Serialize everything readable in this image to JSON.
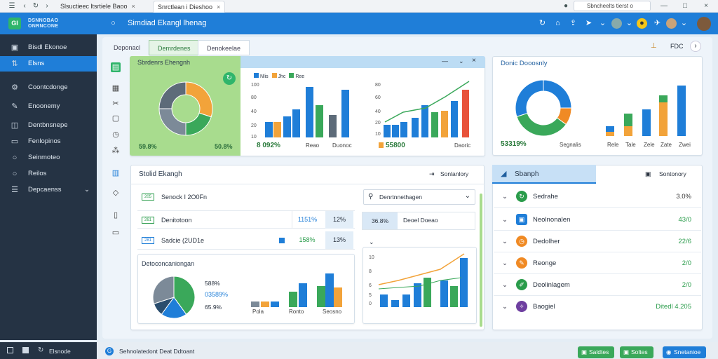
{
  "browser": {
    "tabs": [
      {
        "label": "Slsuctieec ltsrtiele Baoo",
        "active": false
      },
      {
        "label": "Snrctlean i Dieshoo",
        "active": true
      }
    ],
    "address": "Sbncheelts tierst o"
  },
  "app": {
    "brand": "DSNNOBAO ONRNCONE",
    "title": "Simdiad Ekangl lhenag"
  },
  "sidebar": {
    "items": [
      {
        "label": "Bisdl Ekonoe",
        "icon": "grid-icon",
        "active": false
      },
      {
        "label": "Elsns",
        "icon": "chart-icon",
        "active": true
      },
      {
        "label": "Coontcdonge",
        "icon": "settings-icon",
        "active": false
      },
      {
        "label": "Enoonemy",
        "icon": "edit-icon",
        "active": false
      },
      {
        "label": "Dentbnsnepe",
        "icon": "layers-icon",
        "active": false
      },
      {
        "label": "Fenlopinos",
        "icon": "folder-icon",
        "active": false
      },
      {
        "label": "Seinmoteo",
        "icon": "circle-icon",
        "active": false
      },
      {
        "label": "Reilos",
        "icon": "circle-icon",
        "active": false
      },
      {
        "label": "Depcaenss",
        "icon": "list-icon",
        "active": false
      }
    ]
  },
  "subtabs": [
    "Deponacl",
    "Demrdenes",
    "Denokeelae"
  ],
  "toolbar": {
    "zoom": "FDC"
  },
  "card1": {
    "title": "Sbrdenrs Ehengnh",
    "stat_left": "59.8%",
    "stat_right": "50.8%"
  },
  "card2": {
    "legend": [
      "Nlis",
      "Jhc",
      "Ree"
    ],
    "y_ticks": [
      "100",
      "80",
      "40",
      "20",
      "10"
    ],
    "stat": "8 092%",
    "foot1": "Reao",
    "foot2": "Duonoc"
  },
  "card3": {
    "y_ticks": [
      "80",
      "60",
      "40",
      "20",
      "10"
    ],
    "stat": "55800",
    "foot": "Daoric"
  },
  "card4": {
    "title": "Donic Dooosnly",
    "stat": "53319%",
    "labels": [
      "Segnalis",
      "Rele",
      "Tale",
      "Zele",
      "Zate",
      "Zwei"
    ]
  },
  "panel": {
    "title": "Stolid Ekangh",
    "action": "Sonlanlory",
    "search_placeholder": "Denrtnnethagen",
    "rows": [
      {
        "tag": "205",
        "label": "Senock I 2O0Fn",
        "v1": "",
        "v2": ""
      },
      {
        "tag": "261",
        "label": "Denitotoon",
        "v1": "1151%",
        "v2": "12%"
      },
      {
        "tag": "281",
        "label": "Sadcie (2UD1e",
        "v1": "158%",
        "v2": "13%"
      }
    ],
    "side_row": {
      "val": "36.8%",
      "label": "Deoel Doeao"
    },
    "mini_title": "Detoconcaniongan",
    "mini_stats": [
      "588%",
      "03589%",
      "65.9%"
    ],
    "mini_labels": [
      "Pola",
      "Ronto",
      "Seosno"
    ],
    "chart2_ticks": [
      "10",
      "8",
      "6",
      "5",
      "0"
    ]
  },
  "rightpanel": {
    "title": "Sbanph",
    "action": "Sontonory",
    "rows": [
      {
        "label": "Sedrahe",
        "value": "3.0%",
        "color": "#2a9c4b",
        "icon": "refresh-icon"
      },
      {
        "label": "Neolnonalen",
        "value": "43/0",
        "color": "#1f7ed8",
        "icon": "box-icon"
      },
      {
        "label": "Dedolher",
        "value": "22/6",
        "color": "#f08a24",
        "icon": "clock-icon"
      },
      {
        "label": "Reonge",
        "value": "2/0",
        "color": "#f08a24",
        "icon": "edit-icon"
      },
      {
        "label": "Deolinlagem",
        "value": "2/0",
        "color": "#2a9c4b",
        "icon": "pen-icon"
      },
      {
        "label": "Baogiel",
        "value": "Ditedl 4.205",
        "color": "#6e3fa0",
        "icon": "brush-icon"
      }
    ]
  },
  "status": {
    "left": [
      "Elsnode",
      "Sehnolatedont Deat Ddtoant"
    ],
    "buttons": [
      {
        "label": "Saldtes",
        "color": "#3aa85a"
      },
      {
        "label": "Soltes",
        "color": "#3aa85a"
      },
      {
        "label": "Snetanioe",
        "color": "#1f7ed8"
      }
    ]
  }
}
